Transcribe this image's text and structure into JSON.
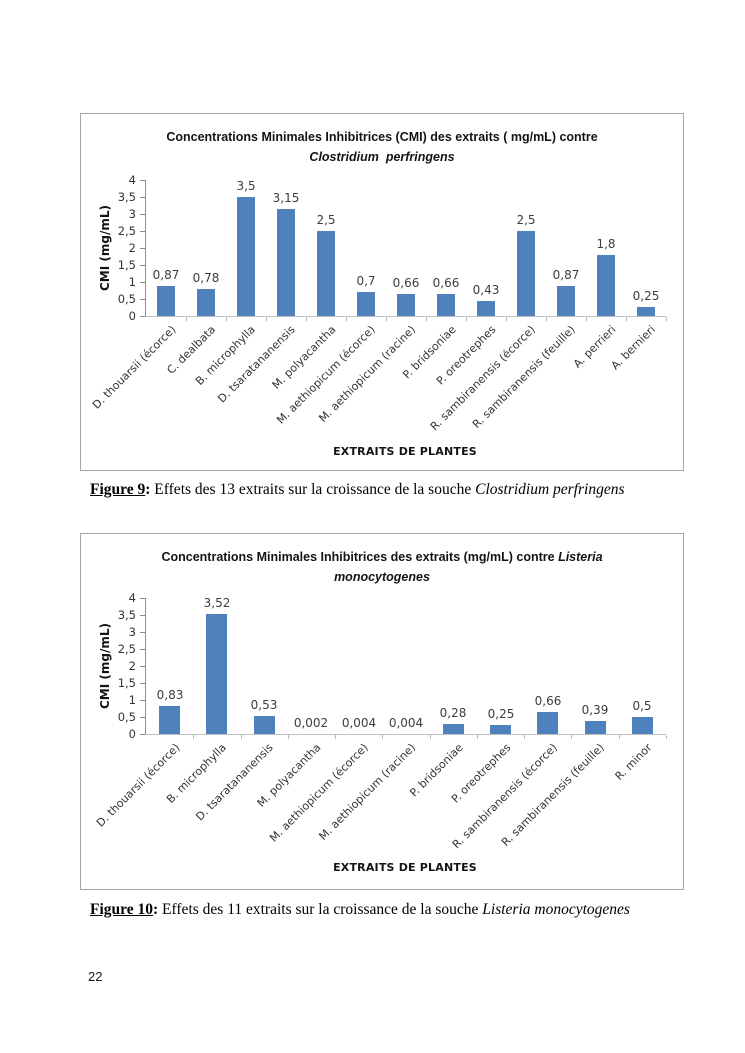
{
  "page": {
    "number": "22"
  },
  "figures": [
    {
      "caption": {
        "label": "Figure 9",
        "sep": ": ",
        "text": "Effets des 13 extraits sur la croissance de la souche ",
        "species": "Clostridium perfringens"
      }
    },
    {
      "caption": {
        "label": "Figure 10",
        "sep": ": ",
        "text": "Effets des 11 extraits sur la croissance de la souche ",
        "species": "Listeria monocytogenes"
      }
    }
  ],
  "chart_data": [
    {
      "type": "bar",
      "title": "Concentrations Minimales Inhibitrices (CMI) des extraits ( mg/mL) contre Clostridium perfringens",
      "title_pre": "Concentrations Minimales Inhibitrices (CMI) des extraits ( mg/mL) contre",
      "title_italic_end": "",
      "title_line2": "Clostridium  perfringens",
      "categories": [
        "D. thouarsii (écorce)",
        "C. dealbata",
        "B. microphylla",
        "D. tsaratananensis",
        "M. polyacantha",
        "M. aethiopicum (écorce)",
        "M. aethiopicum (racine)",
        "P. bridsoniae",
        "P. oreotrephes",
        "R. sambiranensis (écorce)",
        "R. sambiranensis (feuille)",
        "A. perrieri",
        "A. bernieri"
      ],
      "values": [
        0.87,
        0.78,
        3.5,
        3.15,
        2.5,
        0.7,
        0.66,
        0.66,
        0.43,
        2.5,
        0.87,
        1.8,
        0.25
      ],
      "value_labels": [
        "0,87",
        "0,78",
        "3,5",
        "3,15",
        "2,5",
        "0,7",
        "0,66",
        "0,66",
        "0,43",
        "2,5",
        "0,87",
        "1,8",
        "0,25"
      ],
      "xlabel": "EXTRAITS DE PLANTES",
      "ylabel": "CMI (mg/mL)",
      "ylim": [
        0,
        4
      ],
      "ytick_step": 0.5,
      "ytick_labels": [
        "0",
        "0,5",
        "1",
        "1,5",
        "2",
        "2,5",
        "3",
        "3,5",
        "4"
      ],
      "bar_color": "#4f81bd",
      "grid": "off",
      "legend": "none"
    },
    {
      "type": "bar",
      "title": "Concentrations Minimales Inhibitrices des extraits (mg/mL) contre Listeria monocytogenes",
      "title_pre": "Concentrations Minimales Inhibitrices des extraits (mg/mL) contre ",
      "title_italic_end": "Listeria",
      "title_line2": "monocytogenes",
      "categories": [
        "D. thouarsii (écorce)",
        "B. microphylla",
        "D. tsaratananensis",
        "M. polyacantha",
        "M. aethiopicum (écorce)",
        "M. aethiopicum (racine)",
        "P. bridsoniae",
        "P. oreotrephes",
        "R. sambiranensis (écorce)",
        "R. sambiranensis (feuille)",
        "R. minor"
      ],
      "values": [
        0.83,
        3.52,
        0.53,
        0.002,
        0.004,
        0.004,
        0.28,
        0.25,
        0.66,
        0.39,
        0.5
      ],
      "value_labels": [
        "0,83",
        "3,52",
        "0,53",
        "0,002",
        "0,004",
        "0,004",
        "0,28",
        "0,25",
        "0,66",
        "0,39",
        "0,5"
      ],
      "xlabel": "EXTRAITS DE PLANTES",
      "ylabel": "CMI (mg/mL)",
      "ylim": [
        0,
        4
      ],
      "ytick_step": 0.5,
      "ytick_labels": [
        "0",
        "0,5",
        "1",
        "1,5",
        "2",
        "2,5",
        "3",
        "3,5",
        "4"
      ],
      "bar_color": "#4f81bd",
      "grid": "off",
      "legend": "none"
    }
  ]
}
